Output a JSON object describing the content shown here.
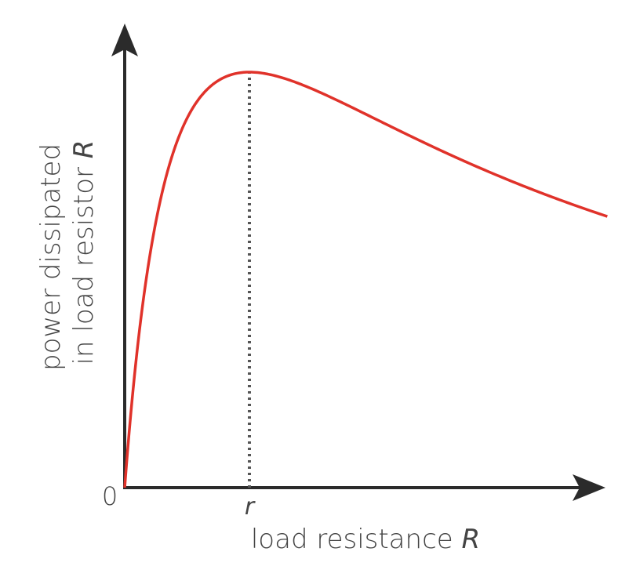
{
  "chart_data": {
    "type": "line",
    "ylabel_line1": "power dissipated",
    "ylabel_line2_text": "in load resistor ",
    "ylabel_line2_var": "R",
    "xlabel_text": "load resistance ",
    "xlabel_var": "R",
    "origin_label": "0",
    "peak_tick_label": "r",
    "peak_x": 1,
    "xlim": [
      0,
      4
    ],
    "ylim": [
      0,
      1.1
    ],
    "series": [
      {
        "formula": "4x/(1+x)^2",
        "color": "#e0322a"
      }
    ],
    "grid": false,
    "peak_marker": "dotted vertical line"
  },
  "colors": {
    "axis": "#2b2b2b",
    "curve": "#e0322a",
    "text": "#444444"
  }
}
